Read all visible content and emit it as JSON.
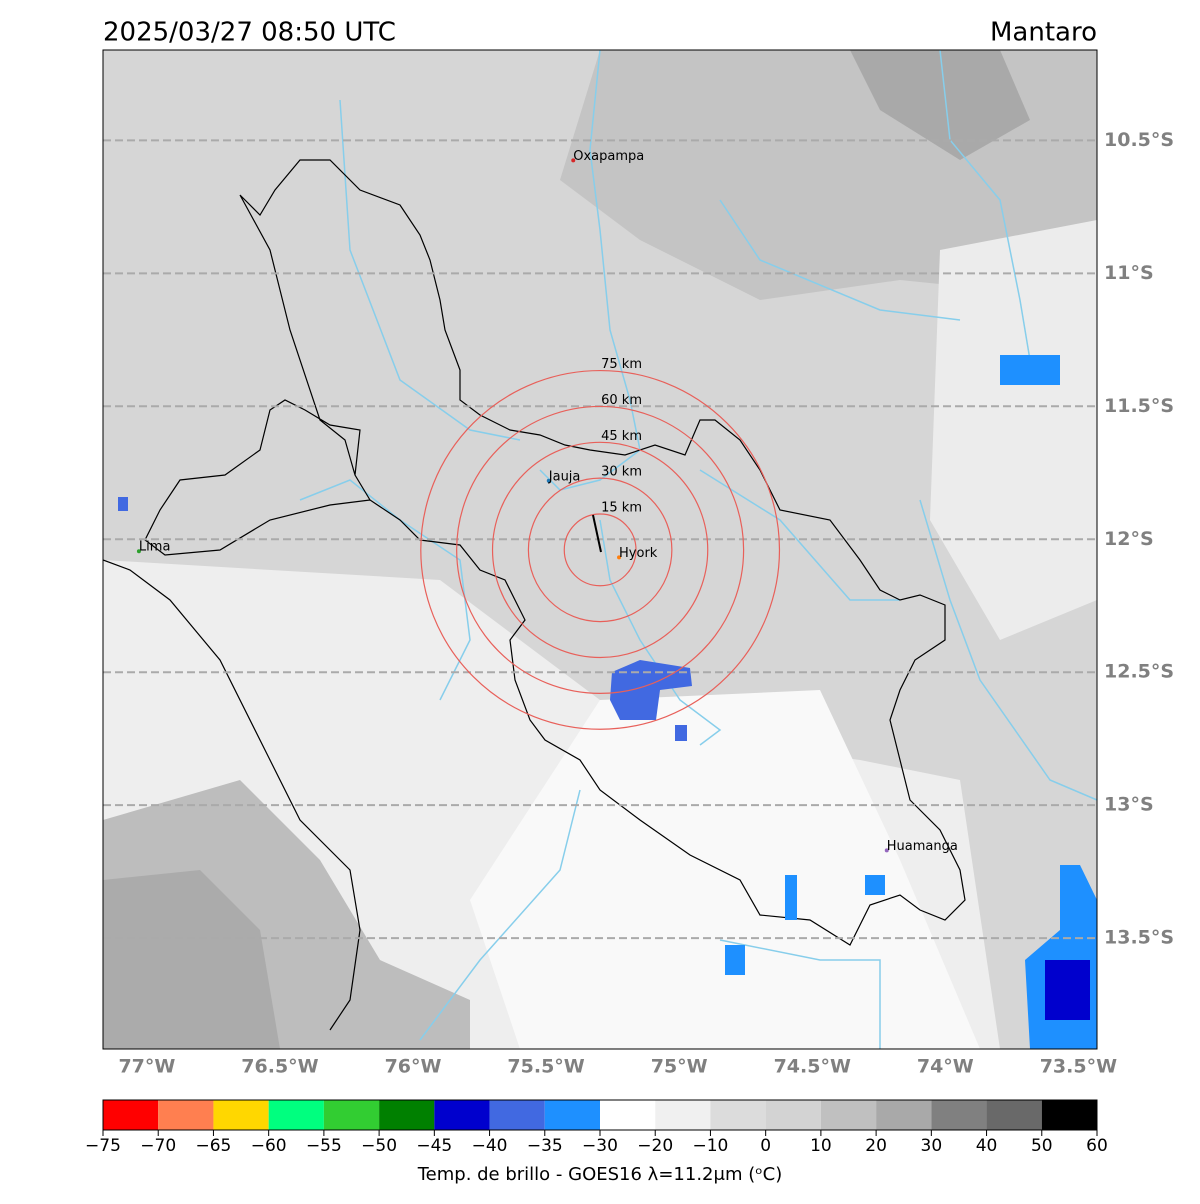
{
  "map": {
    "title": "2025/03/27 08:50 UTC",
    "region": "Mantaro",
    "xlim": [
      -77.165,
      -73.43
    ],
    "ylim": [
      -13.917,
      -10.16
    ],
    "lon_ticks": [
      {
        "value": -77,
        "label": "77°W"
      },
      {
        "value": -76.5,
        "label": "76.5°W"
      },
      {
        "value": -76,
        "label": "76°W"
      },
      {
        "value": -75.5,
        "label": "75.5°W"
      },
      {
        "value": -75,
        "label": "75°W"
      },
      {
        "value": -74.5,
        "label": "74.5°W"
      },
      {
        "value": -74,
        "label": "74°W"
      },
      {
        "value": -73.5,
        "label": "73.5°W"
      }
    ],
    "lat_ticks": [
      {
        "value": -10.5,
        "label": "10.5°S"
      },
      {
        "value": -11,
        "label": "11°S"
      },
      {
        "value": -11.5,
        "label": "11.5°S"
      },
      {
        "value": -12,
        "label": "12°S"
      },
      {
        "value": -12.5,
        "label": "12.5°S"
      },
      {
        "value": -13,
        "label": "13°S"
      },
      {
        "value": -13.5,
        "label": "13.5°S"
      }
    ],
    "cities": [
      {
        "name": "Oxapampa",
        "lon": -75.398,
        "lat": -10.575,
        "color": "#d62728"
      },
      {
        "name": "Jauja",
        "lon": -75.49,
        "lat": -11.78,
        "color": "#1f77b4"
      },
      {
        "name": "Hyork",
        "lon": -75.226,
        "lat": -12.068,
        "color": "#ff7f0e"
      },
      {
        "name": "Lima",
        "lon": -77.03,
        "lat": -12.045,
        "color": "#2ca02c"
      },
      {
        "name": "Huamanga",
        "lon": -74.22,
        "lat": -13.17,
        "color": "#9467bd"
      }
    ],
    "rings": {
      "center_lon": -75.297,
      "center_lat": -12.04,
      "color": "#e8605a",
      "radii_km": [
        15,
        30,
        45,
        60,
        75
      ],
      "labels": [
        "15 km",
        "30 km",
        "45 km",
        "60 km",
        "75 km"
      ]
    },
    "colorbar": {
      "label": "Temp. de brillo - GOES16 λ=11.2μm (ᵒC)",
      "ticks": [
        {
          "value": -75,
          "label": "−75"
        },
        {
          "value": -70,
          "label": "−70"
        },
        {
          "value": -65,
          "label": "−65"
        },
        {
          "value": -60,
          "label": "−60"
        },
        {
          "value": -55,
          "label": "−55"
        },
        {
          "value": -50,
          "label": "−50"
        },
        {
          "value": -45,
          "label": "−45"
        },
        {
          "value": -40,
          "label": "−40"
        },
        {
          "value": -35,
          "label": "−35"
        },
        {
          "value": -30,
          "label": "−30"
        },
        {
          "value": -20,
          "label": "−20"
        },
        {
          "value": -10,
          "label": "−10"
        },
        0,
        10,
        20,
        30,
        40,
        50,
        60
      ],
      "colors": [
        "#ff0000",
        "#ff7f50",
        "#ffd700",
        "#00ff7f",
        "#32cd32",
        "#008000",
        "#0000cd",
        "#4169e1",
        "#1e90ff",
        "#ffffff",
        "#f0f0f0",
        "#dcdcdc",
        "#d3d3d3",
        "#c0c0c0",
        "#a9a9a9",
        "#808080",
        "#696969",
        "#000000"
      ]
    }
  }
}
